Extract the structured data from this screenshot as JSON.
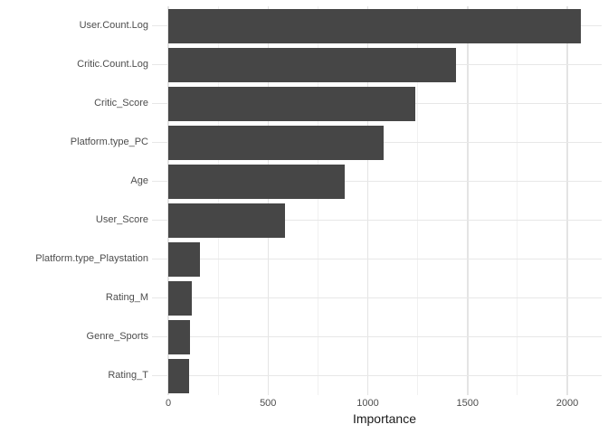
{
  "chart_data": {
    "type": "bar",
    "orientation": "horizontal",
    "title": "",
    "xlabel": "Importance",
    "ylabel": "",
    "categories": [
      "User.Count.Log",
      "Critic.Count.Log",
      "Critic_Score",
      "Platform.type_PC",
      "Age",
      "User_Score",
      "Platform.type_Playstation",
      "Rating_M",
      "Genre_Sports",
      "Rating_T"
    ],
    "values": [
      2070,
      1440,
      1240,
      1080,
      885,
      585,
      160,
      120,
      110,
      105
    ],
    "x_ticks": [
      0,
      500,
      1000,
      1500,
      2000
    ],
    "x_minor_ticks": [
      250,
      750,
      1250,
      1750
    ],
    "xlim": [
      -103,
      2172
    ],
    "grid": "major-and-minor",
    "legend_position": "none",
    "colors": {
      "bar_fill": "#464646",
      "major_grid": "#e4e4e4",
      "minor_grid": "#f1f1f1",
      "row_grid": "#e7e7e7",
      "axis_text": "#4d4d4d",
      "axis_title": "#1a1a1a",
      "background": "#ffffff"
    }
  }
}
